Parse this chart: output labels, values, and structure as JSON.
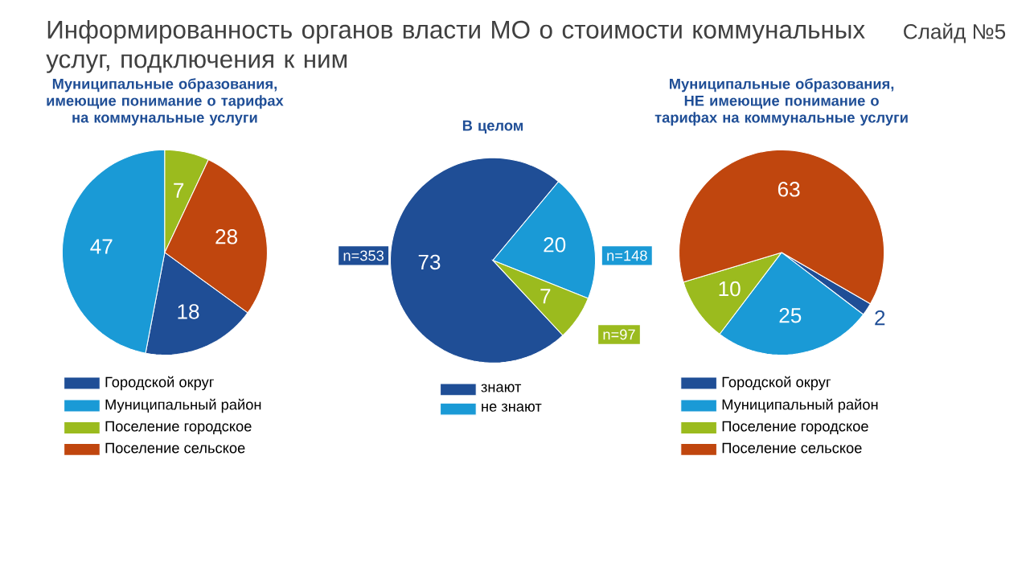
{
  "chart_data": [
    {
      "type": "pie",
      "title": "Муниципальные образования, имеющие понимание о тарифах на коммунальные услуги",
      "categories": [
        "Городской округ",
        "Муниципальный район",
        "Поселение городское",
        "Поселение сельское"
      ],
      "values": [
        18,
        47,
        7,
        28
      ],
      "colors": [
        "#1f4e96",
        "#1a9ad6",
        "#9bbb1e",
        "#c0460e"
      ],
      "data_labels": true,
      "legend": "bottom",
      "annotations": [
        "Информированность органов власти МО о стоимости коммунальных услуг, подключения к ним",
        "Слайд №5"
      ]
    },
    {
      "type": "pie",
      "title": "В целом",
      "categories": [
        "знают",
        "не знают",
        null
      ],
      "values": [
        73,
        20,
        7
      ],
      "colors": [
        "#1f4e96",
        "#1a9ad6",
        "#9bbb1e"
      ],
      "data_labels": true,
      "legend": "bottom",
      "annotations": [
        "n=353",
        "n=148",
        "n=97"
      ]
    },
    {
      "type": "pie",
      "title": "Муниципальные образования, НЕ имеющие понимание о тарифах на коммунальные услуги",
      "categories": [
        "Городской округ",
        "Муниципальный район",
        "Поселение городское",
        "Поселение сельское"
      ],
      "values": [
        2,
        25,
        10,
        63
      ],
      "colors": [
        "#1f4e96",
        "#1a9ad6",
        "#9bbb1e",
        "#c0460e"
      ],
      "data_labels": true,
      "legend": "bottom"
    }
  ]
}
